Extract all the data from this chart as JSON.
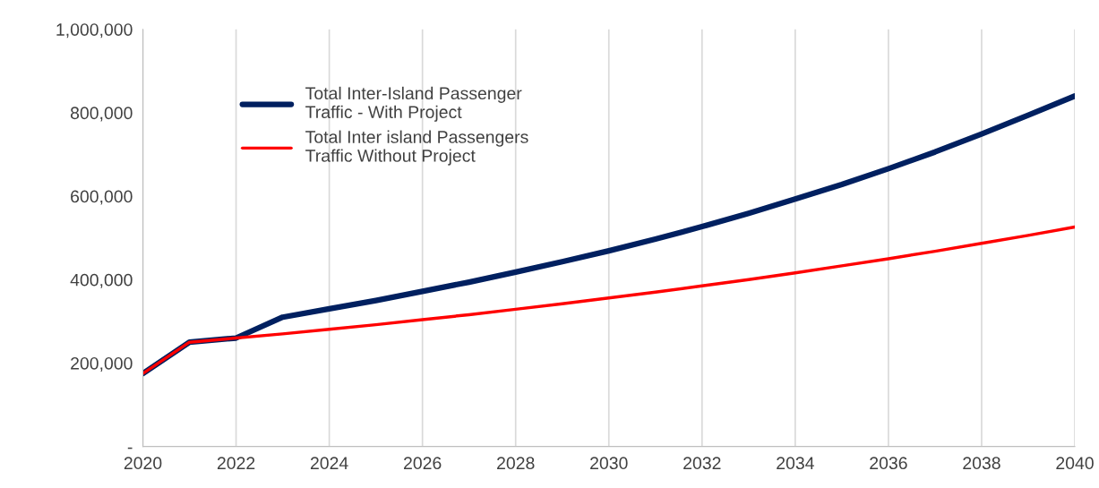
{
  "chart_data": {
    "type": "line",
    "x": [
      2020,
      2021,
      2022,
      2023,
      2024,
      2025,
      2026,
      2027,
      2028,
      2029,
      2030,
      2031,
      2032,
      2033,
      2034,
      2035,
      2036,
      2037,
      2038,
      2039,
      2040
    ],
    "series": [
      {
        "name": "Total Inter-Island Passenger\nTraffic - With Project",
        "color": "#002060",
        "values": [
          175000,
          250000,
          260000,
          310000,
          330000,
          350000,
          372000,
          394000,
          418000,
          443000,
          469000,
          497000,
          527000,
          559000,
          593000,
          628000,
          666000,
          706000,
          749000,
          794000,
          840000
        ]
      },
      {
        "name": "Total Inter island Passengers\nTraffic Without Project",
        "color": "#ff0000",
        "values": [
          175000,
          250000,
          260000,
          270000,
          281000,
          292000,
          304000,
          316000,
          329000,
          342000,
          356000,
          370000,
          385000,
          400000,
          416000,
          433000,
          450000,
          468000,
          487000,
          506000,
          526000
        ]
      }
    ],
    "xlim": [
      2020,
      2040
    ],
    "xticks": [
      2020,
      2022,
      2024,
      2026,
      2028,
      2030,
      2032,
      2034,
      2036,
      2038,
      2040
    ],
    "ylim": [
      0,
      1000000
    ],
    "yticks": [
      {
        "value": 0,
        "label": "-"
      },
      {
        "value": 200000,
        "label": "200,000"
      },
      {
        "value": 400000,
        "label": "400,000"
      },
      {
        "value": 600000,
        "label": "600,000"
      },
      {
        "value": 800000,
        "label": "800,000"
      },
      {
        "value": 1000000,
        "label": "1,000,000"
      }
    ],
    "grid": "x",
    "legend": "top left",
    "marker": "none",
    "line_style": "solid"
  }
}
